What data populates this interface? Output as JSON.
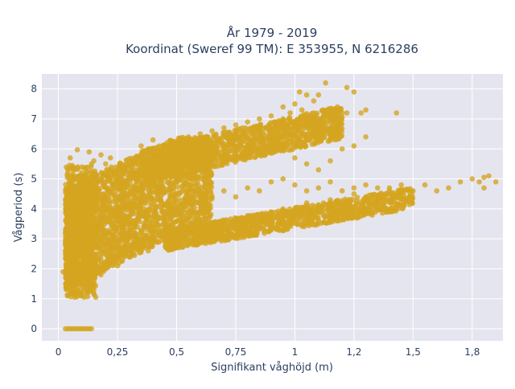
{
  "chart_data": {
    "type": "scatter",
    "title": "År 1979 - 2019",
    "subtitle": "Koordinat (Sweref 99 TM): E 353955, N 6216286",
    "xlabel": "Signifikant våghöjd (m)",
    "ylabel": "Vågperiod (s)",
    "xlim": [
      -0.07,
      1.88
    ],
    "ylim": [
      -0.4,
      8.5
    ],
    "x_ticks": [
      0,
      0.25,
      0.5,
      0.75,
      1,
      1.25,
      1.5,
      1.75
    ],
    "x_tick_labels": [
      "0",
      "0,25",
      "0,5",
      "0,75",
      "1",
      "1,2",
      "1,5",
      "1,8"
    ],
    "y_ticks": [
      0,
      1,
      2,
      3,
      4,
      5,
      6,
      7,
      8
    ],
    "y_tick_labels": [
      "0",
      "1",
      "2",
      "3",
      "4",
      "5",
      "6",
      "7",
      "8"
    ],
    "grid": true,
    "marker_color": "#D4A521",
    "plot_background": "#E5E5EF",
    "series": [
      {
        "points": [
          [
            0.03,
            0
          ],
          [
            0.04,
            0
          ],
          [
            0.05,
            0
          ],
          [
            0.06,
            0
          ],
          [
            0.07,
            0
          ],
          [
            0.08,
            0
          ],
          [
            0.09,
            0
          ],
          [
            0.1,
            0
          ],
          [
            0.11,
            0
          ],
          [
            0.12,
            0
          ],
          [
            0.13,
            0
          ],
          [
            0.14,
            0
          ],
          [
            0.02,
            1.9
          ],
          [
            0.03,
            2.6
          ],
          [
            0.03,
            3.2
          ],
          [
            0.04,
            4.1
          ],
          [
            0.05,
            4.8
          ],
          [
            0.05,
            2.2
          ],
          [
            0.06,
            1.4
          ],
          [
            0.06,
            3.6
          ],
          [
            0.07,
            5.3
          ],
          [
            0.08,
            1.2
          ],
          [
            0.08,
            2.9
          ],
          [
            0.09,
            4.4
          ],
          [
            0.1,
            1.1
          ],
          [
            0.1,
            3.8
          ],
          [
            0.11,
            5.0
          ],
          [
            0.12,
            1.2
          ],
          [
            0.12,
            2.4
          ],
          [
            0.13,
            4.2
          ],
          [
            0.14,
            1.6
          ],
          [
            0.14,
            5.5
          ],
          [
            0.05,
            5.7
          ],
          [
            0.06,
            5.3
          ],
          [
            0.08,
            5.97
          ],
          [
            0.1,
            5.4
          ],
          [
            0.13,
            5.9
          ],
          [
            0.15,
            5.6
          ],
          [
            0.18,
            5.8
          ],
          [
            0.2,
            5.5
          ],
          [
            0.22,
            5.7
          ],
          [
            0.25,
            5.3
          ],
          [
            0.15,
            1.6
          ],
          [
            0.18,
            1.8
          ],
          [
            0.2,
            2.0
          ],
          [
            0.22,
            2.3
          ],
          [
            0.25,
            2.1
          ],
          [
            0.28,
            2.5
          ],
          [
            0.3,
            2.4
          ],
          [
            0.33,
            2.7
          ],
          [
            0.35,
            2.8
          ],
          [
            0.38,
            2.6
          ],
          [
            0.4,
            3.0
          ],
          [
            0.43,
            3.1
          ],
          [
            0.45,
            3.0
          ],
          [
            0.48,
            3.3
          ],
          [
            0.17,
            3.0
          ],
          [
            0.19,
            4.0
          ],
          [
            0.21,
            4.6
          ],
          [
            0.24,
            3.4
          ],
          [
            0.27,
            4.2
          ],
          [
            0.3,
            5.2
          ],
          [
            0.32,
            3.6
          ],
          [
            0.35,
            4.5
          ],
          [
            0.38,
            5.4
          ],
          [
            0.4,
            3.9
          ],
          [
            0.42,
            4.8
          ],
          [
            0.45,
            5.6
          ],
          [
            0.47,
            4.1
          ],
          [
            0.5,
            5.0
          ],
          [
            0.52,
            5.8
          ],
          [
            0.55,
            4.6
          ],
          [
            0.57,
            5.3
          ],
          [
            0.35,
            6.1
          ],
          [
            0.4,
            6.3
          ],
          [
            0.45,
            6.0
          ],
          [
            0.5,
            6.2
          ],
          [
            0.55,
            6.4
          ],
          [
            0.58,
            6.0
          ],
          [
            0.6,
            6.5
          ],
          [
            0.62,
            6.1
          ],
          [
            0.65,
            6.6
          ],
          [
            0.68,
            6.3
          ],
          [
            0.7,
            6.7
          ],
          [
            0.73,
            6.4
          ],
          [
            0.75,
            6.8
          ],
          [
            0.78,
            6.5
          ],
          [
            0.8,
            6.9
          ],
          [
            0.82,
            6.6
          ],
          [
            0.85,
            7.0
          ],
          [
            0.88,
            6.7
          ],
          [
            0.9,
            7.1
          ],
          [
            0.93,
            6.8
          ],
          [
            0.95,
            7.0
          ],
          [
            0.98,
            7.2
          ],
          [
            1.0,
            6.9
          ],
          [
            1.03,
            7.3
          ],
          [
            1.05,
            7.0
          ],
          [
            1.08,
            7.2
          ],
          [
            1.1,
            7.0
          ],
          [
            1.13,
            7.2
          ],
          [
            1.15,
            6.9
          ],
          [
            1.18,
            7.1
          ],
          [
            1.2,
            7.2
          ],
          [
            1.22,
            7.2
          ],
          [
            0.55,
            3.2
          ],
          [
            0.6,
            3.4
          ],
          [
            0.65,
            3.5
          ],
          [
            0.7,
            3.3
          ],
          [
            0.75,
            3.6
          ],
          [
            0.8,
            3.7
          ],
          [
            0.85,
            3.6
          ],
          [
            0.9,
            3.9
          ],
          [
            0.95,
            4.0
          ],
          [
            1.0,
            3.9
          ],
          [
            1.05,
            4.2
          ],
          [
            1.1,
            4.1
          ],
          [
            1.15,
            4.3
          ],
          [
            1.2,
            4.2
          ],
          [
            1.25,
            4.5
          ],
          [
            1.3,
            4.4
          ],
          [
            1.35,
            4.3
          ],
          [
            1.4,
            4.6
          ],
          [
            1.45,
            4.5
          ],
          [
            0.6,
            4.2
          ],
          [
            0.65,
            4.4
          ],
          [
            0.7,
            4.6
          ],
          [
            0.75,
            4.4
          ],
          [
            0.8,
            4.7
          ],
          [
            0.85,
            4.6
          ],
          [
            0.9,
            4.9
          ],
          [
            0.95,
            5.0
          ],
          [
            1.0,
            4.8
          ],
          [
            1.05,
            4.6
          ],
          [
            1.1,
            4.7
          ],
          [
            1.15,
            4.9
          ],
          [
            1.2,
            4.6
          ],
          [
            1.25,
            4.7
          ],
          [
            1.3,
            4.8
          ],
          [
            1.35,
            4.7
          ],
          [
            1.4,
            4.7
          ],
          [
            1.45,
            4.8
          ],
          [
            1.5,
            4.6
          ],
          [
            1.55,
            4.8
          ],
          [
            1.6,
            4.6
          ],
          [
            1.65,
            4.7
          ],
          [
            1.7,
            4.9
          ],
          [
            1.75,
            5.0
          ],
          [
            1.78,
            4.9
          ],
          [
            1.8,
            5.05
          ],
          [
            1.82,
            5.1
          ],
          [
            1.85,
            4.9
          ],
          [
            1.8,
            4.7
          ],
          [
            0.6,
            5.5
          ],
          [
            0.65,
            5.7
          ],
          [
            0.7,
            5.6
          ],
          [
            0.75,
            5.9
          ],
          [
            0.8,
            5.8
          ],
          [
            0.85,
            6.0
          ],
          [
            0.9,
            5.9
          ],
          [
            0.95,
            6.2
          ],
          [
            1.0,
            6.1
          ],
          [
            1.05,
            6.3
          ],
          [
            1.1,
            6.5
          ],
          [
            1.12,
            6.5
          ],
          [
            1.15,
            6.6
          ],
          [
            0.95,
            7.4
          ],
          [
            1.0,
            7.5
          ],
          [
            1.02,
            7.9
          ],
          [
            1.05,
            7.8
          ],
          [
            1.08,
            7.6
          ],
          [
            1.1,
            7.8
          ],
          [
            1.12,
            7.3
          ],
          [
            1.13,
            8.2
          ],
          [
            1.18,
            7.4
          ],
          [
            1.22,
            8.05
          ],
          [
            1.25,
            7.9
          ],
          [
            1.28,
            7.2
          ],
          [
            1.3,
            7.3
          ],
          [
            1.43,
            7.2
          ],
          [
            1.2,
            6.0
          ],
          [
            1.25,
            6.1
          ],
          [
            1.3,
            6.4
          ],
          [
            1.15,
            5.6
          ],
          [
            1.1,
            5.3
          ],
          [
            1.05,
            5.5
          ],
          [
            1.0,
            5.7
          ]
        ]
      }
    ]
  }
}
